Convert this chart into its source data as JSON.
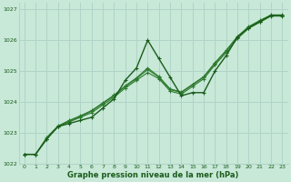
{
  "title": "Graphe pression niveau de la mer (hPa)",
  "bg_color": "#c8e8d8",
  "grid_color": "#b0d4c8",
  "line_color_dark": "#1a5c1a",
  "line_color_mid": "#2d7a2d",
  "xlim": [
    -0.5,
    23.5
  ],
  "ylim": [
    1022,
    1027.2
  ],
  "xticks": [
    0,
    1,
    2,
    3,
    4,
    5,
    6,
    7,
    8,
    9,
    10,
    11,
    12,
    13,
    14,
    15,
    16,
    17,
    18,
    19,
    20,
    21,
    22,
    23
  ],
  "yticks": [
    1022,
    1023,
    1024,
    1025,
    1026,
    1027
  ],
  "series1_x": [
    0,
    1,
    2,
    3,
    4,
    5,
    6,
    7,
    8,
    9,
    10,
    11,
    12,
    13,
    14,
    15,
    16,
    17,
    18,
    19,
    20,
    21,
    22,
    23
  ],
  "series1_y": [
    1022.3,
    1022.3,
    1022.8,
    1023.2,
    1023.3,
    1023.4,
    1023.5,
    1023.8,
    1024.1,
    1024.7,
    1025.1,
    1026.0,
    1025.4,
    1024.8,
    1024.2,
    1024.3,
    1024.3,
    1025.0,
    1025.5,
    1026.1,
    1026.4,
    1026.6,
    1026.8,
    1026.8
  ],
  "series2_x": [
    0,
    1,
    2,
    3,
    4,
    5,
    6,
    7,
    8,
    9,
    10,
    11,
    12,
    13,
    14,
    15,
    16,
    17,
    18,
    19,
    20,
    21,
    22,
    23
  ],
  "series2_y": [
    1022.3,
    1022.3,
    1022.8,
    1023.2,
    1023.35,
    1023.5,
    1023.65,
    1023.9,
    1024.15,
    1024.45,
    1024.7,
    1024.95,
    1024.75,
    1024.35,
    1024.25,
    1024.5,
    1024.75,
    1025.2,
    1025.6,
    1026.05,
    1026.38,
    1026.58,
    1026.78,
    1026.78
  ],
  "series3_x": [
    0,
    1,
    2,
    3,
    4,
    5,
    6,
    7,
    8,
    9,
    10,
    11,
    12,
    13,
    14,
    15,
    16,
    17,
    18,
    19,
    20,
    21,
    22,
    23
  ],
  "series3_y": [
    1022.3,
    1022.3,
    1022.8,
    1023.2,
    1023.38,
    1023.52,
    1023.7,
    1023.95,
    1024.2,
    1024.5,
    1024.75,
    1025.05,
    1024.8,
    1024.4,
    1024.3,
    1024.55,
    1024.8,
    1025.25,
    1025.65,
    1026.1,
    1026.42,
    1026.62,
    1026.8,
    1026.8
  ],
  "series4_x": [
    0,
    1,
    2,
    3,
    4,
    5,
    6,
    7,
    8,
    9,
    10,
    11,
    12,
    13,
    14,
    15,
    16,
    17,
    18,
    19,
    20,
    21,
    22,
    23
  ],
  "series4_y": [
    1022.3,
    1022.3,
    1022.85,
    1023.22,
    1023.4,
    1023.55,
    1023.72,
    1023.97,
    1024.22,
    1024.52,
    1024.78,
    1025.1,
    1024.82,
    1024.42,
    1024.32,
    1024.57,
    1024.82,
    1025.27,
    1025.67,
    1026.12,
    1026.44,
    1026.64,
    1026.82,
    1026.82
  ]
}
